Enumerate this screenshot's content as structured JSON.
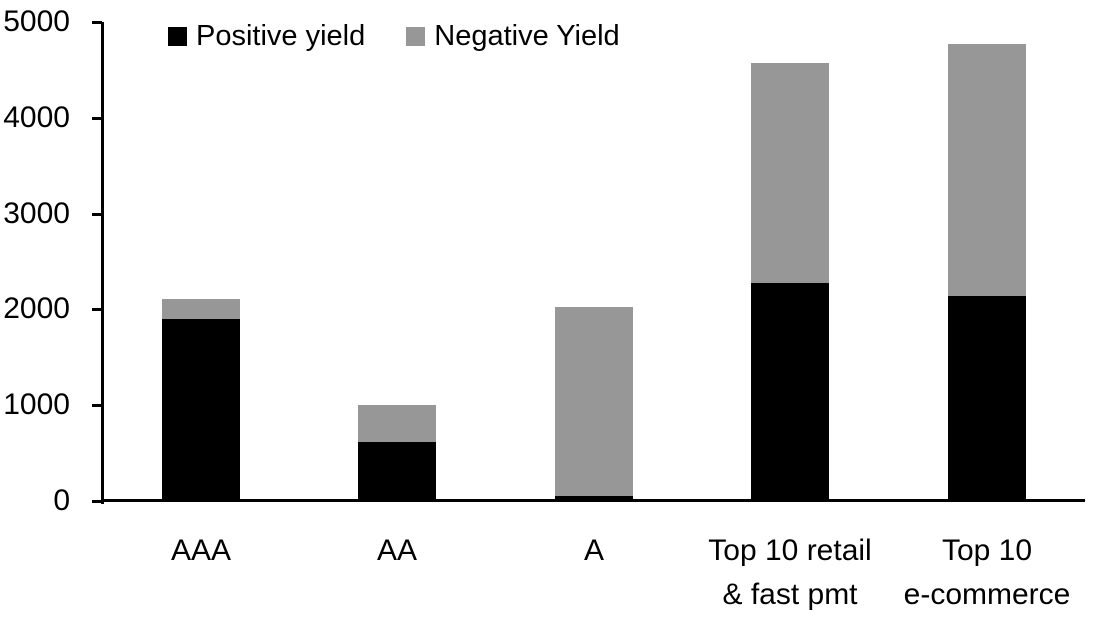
{
  "chart_data": {
    "type": "bar",
    "stacked": true,
    "title": "",
    "categories": [
      "AAA",
      "AA",
      "A",
      "Top 10 retail\n& fast pmt",
      "Top 10\ne-commerce"
    ],
    "series": [
      {
        "name": "Positive yield",
        "color": "#000000",
        "values": [
          1900,
          620,
          50,
          2280,
          2140
        ]
      },
      {
        "name": "Negative Yield",
        "color": "#979797",
        "values": [
          210,
          380,
          1980,
          2290,
          2630
        ]
      }
    ],
    "stack_totals": [
      2110,
      1000,
      2030,
      4570,
      4770
    ],
    "xlabel": "",
    "ylabel": "",
    "ylim": [
      0,
      5000
    ],
    "yticks": [
      0,
      1000,
      2000,
      3000,
      4000,
      5000
    ],
    "legend_position": "top",
    "grid": false,
    "background_color": "#ffffff",
    "axis_color": "#000000"
  }
}
